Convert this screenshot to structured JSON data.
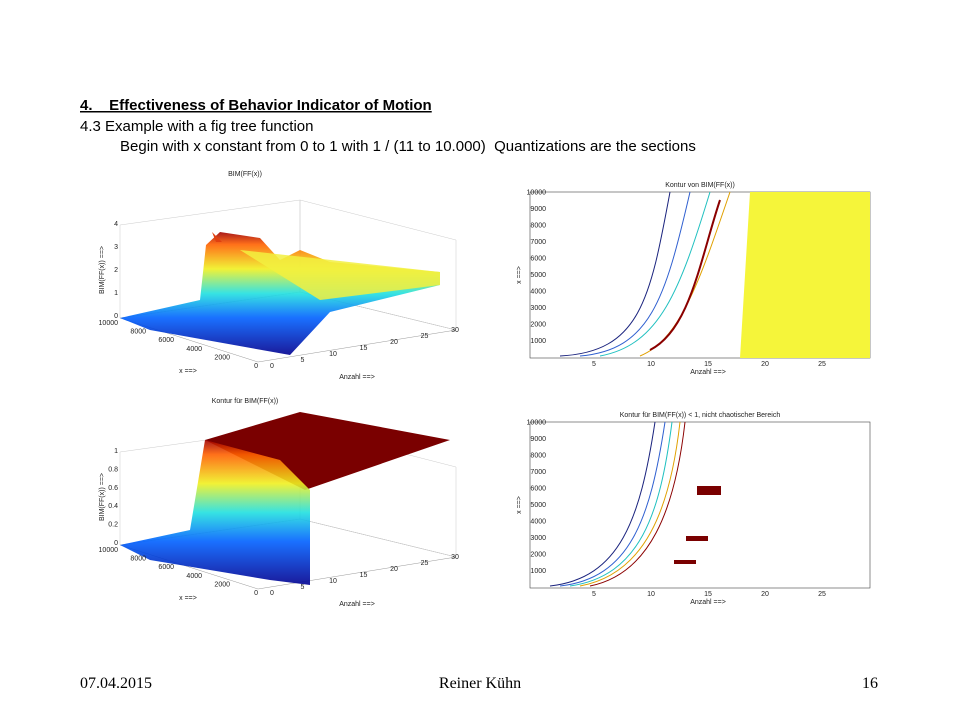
{
  "header": {
    "title": "4.    Effectiveness of Behavior Indicator of Motion",
    "subtitle": "4.3  Example with a fig tree function",
    "description": "Begin with x constant from 0 to 1 with 1 / (11 to 10.000)  Quantizations are the sections"
  },
  "figures": [
    {
      "title": "BIM(FF(x))",
      "z_label": "BIM(FF(x)) ==>",
      "x_label": "x ==>",
      "anzahl_label": "Anzahl ==>",
      "z_ticks": [
        "4",
        "3",
        "2",
        "1",
        "0"
      ],
      "x_ticks": [
        "10000",
        "8000",
        "6000",
        "4000",
        "2000",
        "0"
      ],
      "anzahl_ticks": [
        "0",
        "5",
        "10",
        "15",
        "20",
        "25",
        "30"
      ]
    },
    {
      "title": "Kontur von BIM(FF(x))",
      "y_label": "x ==>",
      "x_label": "Anzahl ==>",
      "y_ticks": [
        "10000",
        "9000",
        "8000",
        "7000",
        "6000",
        "5000",
        "4000",
        "3000",
        "2000",
        "1000"
      ],
      "x_ticks": [
        "5",
        "10",
        "15",
        "20",
        "25"
      ]
    },
    {
      "title": "Kontur für BIM(FF(x))",
      "z_label": "BIM(FF(x)) ==>",
      "x_label": "x ==>",
      "anzahl_label": "Anzahl ==>",
      "z_ticks": [
        "1",
        "0.8",
        "0.6",
        "0.4",
        "0.2",
        "0"
      ],
      "x_ticks": [
        "10000",
        "8000",
        "6000",
        "4000",
        "2000",
        "0"
      ],
      "anzahl_ticks": [
        "0",
        "5",
        "10",
        "15",
        "20",
        "25",
        "30"
      ]
    },
    {
      "title": "Kontur für BIM(FF(x)) < 1, nicht chaotischer Bereich",
      "y_label": "x ==>",
      "x_label": "Anzahl ==>",
      "y_ticks": [
        "10000",
        "9000",
        "8000",
        "7000",
        "6000",
        "5000",
        "4000",
        "3000",
        "2000",
        "1000"
      ],
      "x_ticks": [
        "5",
        "10",
        "15",
        "20",
        "25"
      ]
    }
  ],
  "footer": {
    "date": "07.04.2015",
    "author": "Reiner Kühn",
    "page": "16"
  }
}
